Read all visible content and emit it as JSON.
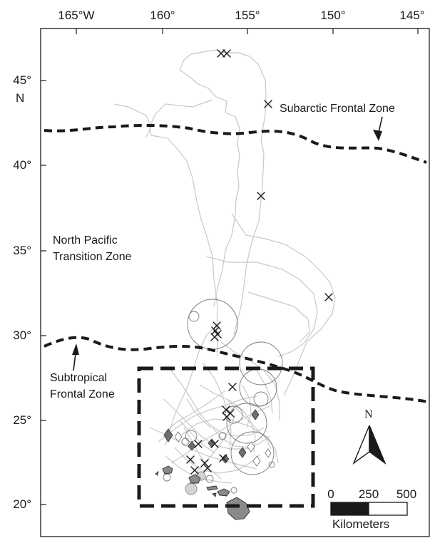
{
  "map": {
    "lon_ticks": [
      "165°W",
      "160°",
      "155°",
      "150°",
      "145°"
    ],
    "lat_ticks": [
      "45°",
      "40°",
      "35°",
      "30°",
      "25°",
      "20°"
    ],
    "lat_unit": "N",
    "fronts": {
      "subarctic": "Subarctic Frontal Zone",
      "subtropical_line1": "Subtropical",
      "subtropical_line2": "Frontal Zone"
    },
    "transition_line1": "North Pacific",
    "transition_line2": "Transition Zone",
    "north_arrow": "N",
    "scale": {
      "labels": [
        "0",
        "250",
        "500"
      ],
      "unit": "Kilometers"
    }
  }
}
